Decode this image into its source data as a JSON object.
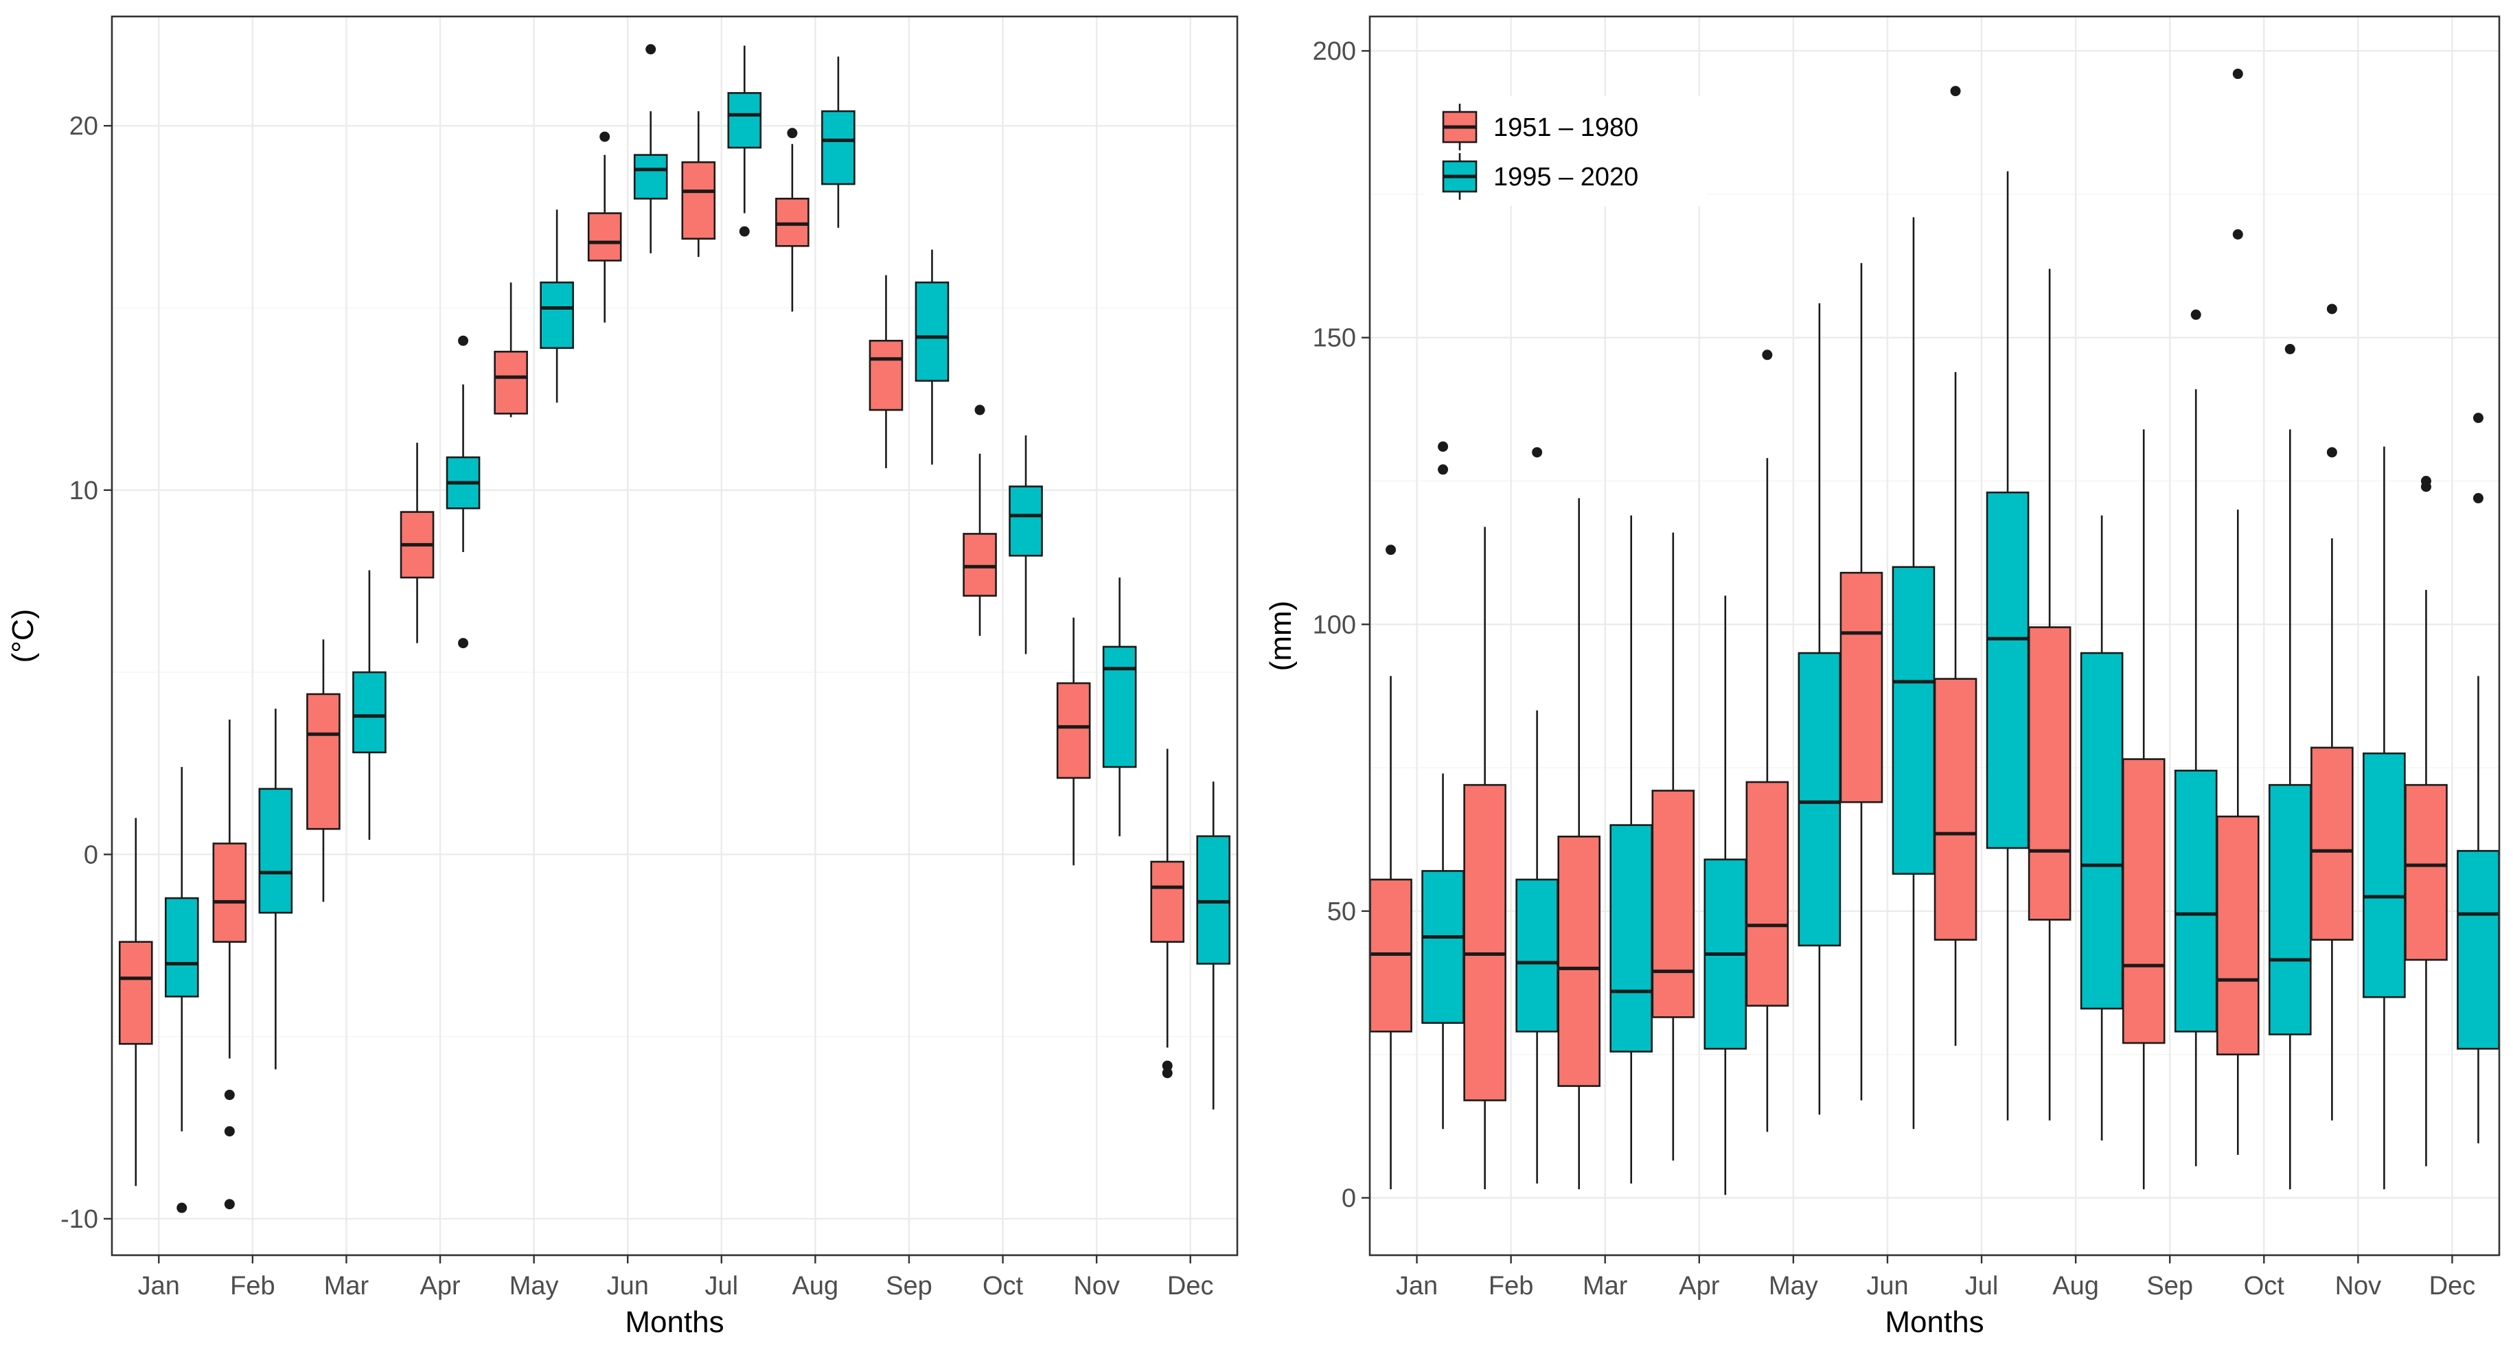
{
  "chart_data": [
    {
      "type": "boxplot",
      "title": "",
      "xlabel": "Months",
      "ylabel": "(°C)",
      "categories": [
        "Jan",
        "Feb",
        "Mar",
        "Apr",
        "May",
        "Jun",
        "Jul",
        "Aug",
        "Sep",
        "Oct",
        "Nov",
        "Dec"
      ],
      "ylim": [
        -11,
        23
      ],
      "yticks": [
        -10,
        0,
        10,
        20
      ],
      "ytick_labels": [
        "-10",
        "0",
        "10",
        "20"
      ],
      "legend": "none",
      "grid": true,
      "series": [
        {
          "name": "1951 – 1980",
          "color": "#F8766D",
          "stats": [
            {
              "low": -9.1,
              "q1": -5.2,
              "median": -3.4,
              "q3": -2.4,
              "high": 1.0,
              "outliers": []
            },
            {
              "low": -5.6,
              "q1": -2.4,
              "median": -1.3,
              "q3": 0.3,
              "high": 3.7,
              "outliers": [
                -6.6,
                -7.6,
                -9.6
              ]
            },
            {
              "low": -1.3,
              "q1": 0.7,
              "median": 3.3,
              "q3": 4.4,
              "high": 5.9,
              "outliers": []
            },
            {
              "low": 5.8,
              "q1": 7.6,
              "median": 8.5,
              "q3": 9.4,
              "high": 11.3,
              "outliers": []
            },
            {
              "low": 12.0,
              "q1": 12.1,
              "median": 13.1,
              "q3": 13.8,
              "high": 15.7,
              "outliers": []
            },
            {
              "low": 14.6,
              "q1": 16.3,
              "median": 16.8,
              "q3": 17.6,
              "high": 19.2,
              "outliers": [
                19.7
              ]
            },
            {
              "low": 16.4,
              "q1": 16.9,
              "median": 18.2,
              "q3": 19.0,
              "high": 20.4,
              "outliers": []
            },
            {
              "low": 14.9,
              "q1": 16.7,
              "median": 17.3,
              "q3": 18.0,
              "high": 19.5,
              "outliers": [
                19.8
              ]
            },
            {
              "low": 10.6,
              "q1": 12.2,
              "median": 13.6,
              "q3": 14.1,
              "high": 15.9,
              "outliers": []
            },
            {
              "low": 6.0,
              "q1": 7.1,
              "median": 7.9,
              "q3": 8.8,
              "high": 11.0,
              "outliers": [
                12.2
              ]
            },
            {
              "low": -0.3,
              "q1": 2.1,
              "median": 3.5,
              "q3": 4.7,
              "high": 6.5,
              "outliers": []
            },
            {
              "low": -5.3,
              "q1": -2.4,
              "median": -0.9,
              "q3": -0.2,
              "high": 2.9,
              "outliers": [
                -5.8,
                -6.0
              ]
            }
          ]
        },
        {
          "name": "1995 – 2020",
          "color": "#00BFC4",
          "stats": [
            {
              "low": -7.6,
              "q1": -3.9,
              "median": -3.0,
              "q3": -1.2,
              "high": 2.4,
              "outliers": [
                -9.7
              ]
            },
            {
              "low": -5.9,
              "q1": -1.6,
              "median": -0.5,
              "q3": 1.8,
              "high": 4.0,
              "outliers": []
            },
            {
              "low": 0.4,
              "q1": 2.8,
              "median": 3.8,
              "q3": 5.0,
              "high": 7.8,
              "outliers": []
            },
            {
              "low": 8.3,
              "q1": 9.5,
              "median": 10.2,
              "q3": 10.9,
              "high": 12.9,
              "outliers": [
                14.1,
                5.8
              ]
            },
            {
              "low": 12.4,
              "q1": 13.9,
              "median": 15.0,
              "q3": 15.7,
              "high": 17.7,
              "outliers": []
            },
            {
              "low": 16.5,
              "q1": 18.0,
              "median": 18.8,
              "q3": 19.2,
              "high": 20.4,
              "outliers": [
                22.1
              ]
            },
            {
              "low": 17.6,
              "q1": 19.4,
              "median": 20.3,
              "q3": 20.9,
              "high": 22.2,
              "outliers": [
                17.1
              ]
            },
            {
              "low": 17.2,
              "q1": 18.4,
              "median": 19.6,
              "q3": 20.4,
              "high": 21.9,
              "outliers": []
            },
            {
              "low": 10.7,
              "q1": 13.0,
              "median": 14.2,
              "q3": 15.7,
              "high": 16.6,
              "outliers": []
            },
            {
              "low": 5.5,
              "q1": 8.2,
              "median": 9.3,
              "q3": 10.1,
              "high": 11.5,
              "outliers": []
            },
            {
              "low": 0.5,
              "q1": 2.4,
              "median": 5.1,
              "q3": 5.7,
              "high": 7.6,
              "outliers": []
            },
            {
              "low": -7.0,
              "q1": -3.0,
              "median": -1.3,
              "q3": 0.5,
              "high": 2.0,
              "outliers": []
            }
          ]
        }
      ]
    },
    {
      "type": "boxplot",
      "title": "",
      "xlabel": "Months",
      "ylabel": "(mm)",
      "categories": [
        "Jan",
        "Feb",
        "Mar",
        "Apr",
        "May",
        "Jun",
        "Jul",
        "Aug",
        "Sep",
        "Oct",
        "Nov",
        "Dec"
      ],
      "ylim": [
        -10,
        206
      ],
      "yticks": [
        0,
        50,
        100,
        150,
        200
      ],
      "ytick_labels": [
        "0",
        "50",
        "100",
        "150",
        "200"
      ],
      "legend": "top-left",
      "grid": true,
      "series": [
        {
          "name": "1951 – 1980",
          "color": "#F8766D",
          "stats": [
            {
              "low": 1.5,
              "q1": 29,
              "median": 42.5,
              "q3": 55.5,
              "high": 91,
              "outliers": [
                113
              ]
            },
            {
              "low": 1.5,
              "q1": 17,
              "median": 42.5,
              "q3": 72,
              "high": 117,
              "outliers": []
            },
            {
              "low": 1.5,
              "q1": 19.5,
              "median": 40,
              "q3": 63,
              "high": 122,
              "outliers": []
            },
            {
              "low": 6.5,
              "q1": 31.5,
              "median": 39.5,
              "q3": 71,
              "high": 116,
              "outliers": []
            },
            {
              "low": 11.5,
              "q1": 33.5,
              "median": 47.5,
              "q3": 72.5,
              "high": 129,
              "outliers": [
                147
              ]
            },
            {
              "low": 17,
              "q1": 69,
              "median": 98.5,
              "q3": 109,
              "high": 163,
              "outliers": []
            },
            {
              "low": 26.5,
              "q1": 45,
              "median": 63.5,
              "q3": 90.5,
              "high": 144,
              "outliers": [
                193
              ]
            },
            {
              "low": 13.5,
              "q1": 48.5,
              "median": 60.5,
              "q3": 99.5,
              "high": 162,
              "outliers": []
            },
            {
              "low": 1.5,
              "q1": 27,
              "median": 40.5,
              "q3": 76.5,
              "high": 134,
              "outliers": []
            },
            {
              "low": 7.5,
              "q1": 25,
              "median": 38,
              "q3": 66.5,
              "high": 120,
              "outliers": [
                168,
                196
              ]
            },
            {
              "low": 13.5,
              "q1": 45,
              "median": 60.5,
              "q3": 78.5,
              "high": 115,
              "outliers": [
                130,
                155
              ]
            },
            {
              "low": 5.5,
              "q1": 41.5,
              "median": 58,
              "q3": 72,
              "high": 106,
              "outliers": [
                124,
                125
              ]
            }
          ]
        },
        {
          "name": "1995 – 2020",
          "color": "#00BFC4",
          "stats": [
            {
              "low": 12,
              "q1": 30.5,
              "median": 45.5,
              "q3": 57,
              "high": 74,
              "outliers": [
                127,
                131
              ]
            },
            {
              "low": 2.5,
              "q1": 29,
              "median": 41,
              "q3": 55.5,
              "high": 85,
              "outliers": [
                130
              ]
            },
            {
              "low": 2.5,
              "q1": 25.5,
              "median": 36,
              "q3": 65,
              "high": 119,
              "outliers": []
            },
            {
              "low": 0.5,
              "q1": 26,
              "median": 42.5,
              "q3": 59,
              "high": 105,
              "outliers": []
            },
            {
              "low": 14.5,
              "q1": 44,
              "median": 69,
              "q3": 95,
              "high": 156,
              "outliers": []
            },
            {
              "low": 12,
              "q1": 56.5,
              "median": 90,
              "q3": 110,
              "high": 171,
              "outliers": []
            },
            {
              "low": 13.5,
              "q1": 61,
              "median": 97.5,
              "q3": 123,
              "high": 179,
              "outliers": []
            },
            {
              "low": 10,
              "q1": 33,
              "median": 58,
              "q3": 95,
              "high": 119,
              "outliers": []
            },
            {
              "low": 5.5,
              "q1": 29,
              "median": 49.5,
              "q3": 74.5,
              "high": 141,
              "outliers": [
                154
              ]
            },
            {
              "low": 1.5,
              "q1": 28.5,
              "median": 41.5,
              "q3": 72,
              "high": 134,
              "outliers": [
                148
              ]
            },
            {
              "low": 1.5,
              "q1": 35,
              "median": 52.5,
              "q3": 77.5,
              "high": 131,
              "outliers": []
            },
            {
              "low": 9.5,
              "q1": 26,
              "median": 49.5,
              "q3": 60.5,
              "high": 91,
              "outliers": [
                122,
                136
              ]
            }
          ]
        }
      ]
    }
  ]
}
